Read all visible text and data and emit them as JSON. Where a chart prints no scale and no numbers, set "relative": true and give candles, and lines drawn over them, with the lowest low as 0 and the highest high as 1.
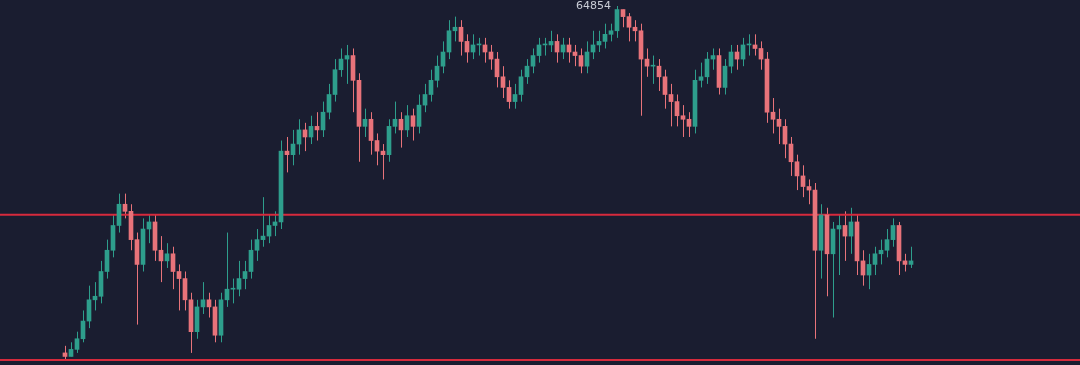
{
  "chart_data": {
    "type": "candlestick",
    "relative": true,
    "categories": [
      null,
      null,
      null,
      null,
      null,
      null,
      null,
      null,
      null,
      null,
      null,
      null,
      null,
      null,
      null,
      null,
      null,
      null,
      null,
      null,
      null,
      null,
      null,
      null,
      null,
      null,
      null,
      null,
      null,
      null,
      null,
      null,
      null,
      null,
      null,
      null,
      null,
      null,
      null,
      null,
      null,
      null,
      null,
      null,
      null,
      null,
      null,
      null,
      null,
      null,
      null,
      null,
      null,
      null,
      null,
      null,
      null,
      null,
      null,
      null,
      null,
      null,
      null,
      null,
      null,
      null,
      null,
      null,
      null,
      null,
      null,
      null,
      null,
      null,
      null,
      null,
      null,
      null,
      null,
      null,
      null,
      null,
      null,
      null,
      null,
      null,
      null,
      null,
      null,
      null,
      null,
      null,
      null,
      null,
      null,
      null,
      null,
      null,
      null,
      null,
      null,
      null,
      null,
      null,
      null,
      null,
      null,
      null,
      null,
      null,
      null,
      null,
      null,
      null,
      null,
      null,
      null,
      null,
      null,
      null,
      null,
      null,
      null,
      null,
      null,
      null,
      null,
      null,
      null,
      null,
      null,
      null,
      null,
      null,
      null,
      null,
      null,
      null,
      null,
      null,
      null,
      null
    ],
    "ohlc": [
      [
        0.02,
        0.04,
        0,
        0.01
      ],
      [
        0.01,
        0.05,
        0.01,
        0.03
      ],
      [
        0.03,
        0.08,
        0.02,
        0.06
      ],
      [
        0.06,
        0.14,
        0.05,
        0.11
      ],
      [
        0.11,
        0.21,
        0.09,
        0.17
      ],
      [
        0.17,
        0.22,
        0.14,
        0.18
      ],
      [
        0.18,
        0.28,
        0.16,
        0.25
      ],
      [
        0.25,
        0.34,
        0.23,
        0.31
      ],
      [
        0.31,
        0.41,
        0.29,
        0.38
      ],
      [
        0.38,
        0.47,
        0.36,
        0.44
      ],
      [
        0.44,
        0.47,
        0.4,
        0.42
      ],
      [
        0.42,
        0.44,
        0.31,
        0.34
      ],
      [
        0.34,
        0.36,
        0.1,
        0.27
      ],
      [
        0.27,
        0.4,
        0.25,
        0.37
      ],
      [
        0.37,
        0.41,
        0.33,
        0.39
      ],
      [
        0.39,
        0.41,
        0.28,
        0.31
      ],
      [
        0.31,
        0.35,
        0.22,
        0.28
      ],
      [
        0.28,
        0.33,
        0.26,
        0.3
      ],
      [
        0.3,
        0.32,
        0.2,
        0.25
      ],
      [
        0.25,
        0.27,
        0.14,
        0.23
      ],
      [
        0.23,
        0.25,
        0.14,
        0.17
      ],
      [
        0.17,
        0.19,
        0.02,
        0.08
      ],
      [
        0.08,
        0.17,
        0.06,
        0.15
      ],
      [
        0.15,
        0.22,
        0.13,
        0.17
      ],
      [
        0.17,
        0.19,
        0.12,
        0.15
      ],
      [
        0.15,
        0.17,
        0.05,
        0.07
      ],
      [
        0.07,
        0.19,
        0.05,
        0.17
      ],
      [
        0.17,
        0.36,
        0.15,
        0.2
      ],
      [
        0.2,
        0.23,
        0.16,
        0.2
      ],
      [
        0.2,
        0.28,
        0.18,
        0.23
      ],
      [
        0.23,
        0.28,
        0.2,
        0.25
      ],
      [
        0.25,
        0.34,
        0.23,
        0.31
      ],
      [
        0.31,
        0.37,
        0.28,
        0.34
      ],
      [
        0.34,
        0.46,
        0.32,
        0.35
      ],
      [
        0.35,
        0.41,
        0.33,
        0.38
      ],
      [
        0.38,
        0.42,
        0.35,
        0.39
      ],
      [
        0.39,
        0.62,
        0.37,
        0.59
      ],
      [
        0.59,
        0.63,
        0.53,
        0.58
      ],
      [
        0.58,
        0.65,
        0.55,
        0.61
      ],
      [
        0.61,
        0.68,
        0.58,
        0.65
      ],
      [
        0.65,
        0.67,
        0.59,
        0.63
      ],
      [
        0.63,
        0.69,
        0.61,
        0.66
      ],
      [
        0.66,
        0.7,
        0.62,
        0.65
      ],
      [
        0.65,
        0.73,
        0.63,
        0.7
      ],
      [
        0.7,
        0.78,
        0.68,
        0.75
      ],
      [
        0.75,
        0.85,
        0.73,
        0.82
      ],
      [
        0.82,
        0.88,
        0.8,
        0.85
      ],
      [
        0.85,
        0.89,
        0.78,
        0.86
      ],
      [
        0.86,
        0.88,
        0.7,
        0.79
      ],
      [
        0.79,
        0.81,
        0.56,
        0.66
      ],
      [
        0.66,
        0.71,
        0.63,
        0.68
      ],
      [
        0.68,
        0.7,
        0.58,
        0.62
      ],
      [
        0.62,
        0.64,
        0.55,
        0.59
      ],
      [
        0.59,
        0.61,
        0.51,
        0.58
      ],
      [
        0.58,
        0.68,
        0.56,
        0.66
      ],
      [
        0.66,
        0.73,
        0.64,
        0.68
      ],
      [
        0.68,
        0.7,
        0.6,
        0.65
      ],
      [
        0.65,
        0.72,
        0.63,
        0.69
      ],
      [
        0.69,
        0.71,
        0.62,
        0.66
      ],
      [
        0.66,
        0.75,
        0.64,
        0.72
      ],
      [
        0.72,
        0.78,
        0.7,
        0.75
      ],
      [
        0.75,
        0.82,
        0.73,
        0.79
      ],
      [
        0.79,
        0.86,
        0.77,
        0.83
      ],
      [
        0.83,
        0.9,
        0.81,
        0.87
      ],
      [
        0.87,
        0.96,
        0.85,
        0.93
      ],
      [
        0.93,
        0.97,
        0.9,
        0.94
      ],
      [
        0.94,
        0.96,
        0.86,
        0.9
      ],
      [
        0.9,
        0.92,
        0.84,
        0.87
      ],
      [
        0.87,
        0.92,
        0.85,
        0.89
      ],
      [
        0.89,
        0.91,
        0.86,
        0.89
      ],
      [
        0.89,
        0.91,
        0.84,
        0.87
      ],
      [
        0.87,
        0.89,
        0.82,
        0.85
      ],
      [
        0.85,
        0.87,
        0.77,
        0.8
      ],
      [
        0.8,
        0.83,
        0.74,
        0.77
      ],
      [
        0.77,
        0.79,
        0.71,
        0.73
      ],
      [
        0.73,
        0.78,
        0.71,
        0.75
      ],
      [
        0.75,
        0.82,
        0.73,
        0.8
      ],
      [
        0.8,
        0.85,
        0.78,
        0.83
      ],
      [
        0.83,
        0.88,
        0.81,
        0.86
      ],
      [
        0.86,
        0.91,
        0.84,
        0.89
      ],
      [
        0.89,
        0.91,
        0.86,
        0.89
      ],
      [
        0.89,
        0.93,
        0.87,
        0.9
      ],
      [
        0.9,
        0.92,
        0.84,
        0.87
      ],
      [
        0.87,
        0.91,
        0.85,
        0.89
      ],
      [
        0.89,
        0.91,
        0.84,
        0.87
      ],
      [
        0.87,
        0.89,
        0.83,
        0.86
      ],
      [
        0.86,
        0.88,
        0.81,
        0.83
      ],
      [
        0.83,
        0.9,
        0.81,
        0.87
      ],
      [
        0.87,
        0.93,
        0.85,
        0.89
      ],
      [
        0.89,
        0.93,
        0.87,
        0.9
      ],
      [
        0.9,
        0.95,
        0.88,
        0.92
      ],
      [
        0.92,
        0.95,
        0.9,
        0.93
      ],
      [
        0.93,
        1,
        0.91,
        0.99
      ],
      [
        0.99,
        0.99,
        0.94,
        0.97
      ],
      [
        0.97,
        0.98,
        0.9,
        0.94
      ],
      [
        0.94,
        0.96,
        0.9,
        0.93
      ],
      [
        0.93,
        0.95,
        0.69,
        0.85
      ],
      [
        0.85,
        0.88,
        0.8,
        0.83
      ],
      [
        0.83,
        0.86,
        0.78,
        0.83
      ],
      [
        0.83,
        0.85,
        0.76,
        0.8
      ],
      [
        0.8,
        0.82,
        0.71,
        0.75
      ],
      [
        0.75,
        0.78,
        0.66,
        0.73
      ],
      [
        0.73,
        0.75,
        0.66,
        0.69
      ],
      [
        0.69,
        0.72,
        0.63,
        0.68
      ],
      [
        0.68,
        0.7,
        0.63,
        0.66
      ],
      [
        0.66,
        0.82,
        0.64,
        0.79
      ],
      [
        0.79,
        0.84,
        0.77,
        0.8
      ],
      [
        0.8,
        0.87,
        0.78,
        0.85
      ],
      [
        0.85,
        0.88,
        0.82,
        0.86
      ],
      [
        0.86,
        0.88,
        0.75,
        0.77
      ],
      [
        0.77,
        0.85,
        0.75,
        0.83
      ],
      [
        0.83,
        0.89,
        0.81,
        0.87
      ],
      [
        0.87,
        0.89,
        0.82,
        0.85
      ],
      [
        0.85,
        0.91,
        0.83,
        0.89
      ],
      [
        0.89,
        0.92,
        0.86,
        0.89
      ],
      [
        0.89,
        0.92,
        0.86,
        0.88
      ],
      [
        0.88,
        0.9,
        0.82,
        0.85
      ],
      [
        0.85,
        0.87,
        0.67,
        0.7
      ],
      [
        0.7,
        0.74,
        0.64,
        0.68
      ],
      [
        0.68,
        0.71,
        0.61,
        0.66
      ],
      [
        0.66,
        0.68,
        0.57,
        0.61
      ],
      [
        0.61,
        0.63,
        0.52,
        0.56
      ],
      [
        0.56,
        0.58,
        0.48,
        0.52
      ],
      [
        0.52,
        0.55,
        0.46,
        0.49
      ],
      [
        0.49,
        0.51,
        0.44,
        0.48
      ],
      [
        0.48,
        0.5,
        0.06,
        0.31
      ],
      [
        0.31,
        0.44,
        0.23,
        0.41
      ],
      [
        0.41,
        0.43,
        0.18,
        0.3
      ],
      [
        0.3,
        0.39,
        0.12,
        0.37
      ],
      [
        0.37,
        0.41,
        0.24,
        0.38
      ],
      [
        0.38,
        0.42,
        0.28,
        0.35
      ],
      [
        0.35,
        0.43,
        0.3,
        0.39
      ],
      [
        0.39,
        0.41,
        0.24,
        0.28
      ],
      [
        0.28,
        0.31,
        0.21,
        0.24
      ],
      [
        0.24,
        0.3,
        0.2,
        0.27
      ],
      [
        0.27,
        0.32,
        0.24,
        0.3
      ],
      [
        0.3,
        0.34,
        0.27,
        0.31
      ],
      [
        0.31,
        0.37,
        0.29,
        0.34
      ],
      [
        0.34,
        0.4,
        0.32,
        0.38
      ],
      [
        0.38,
        0.39,
        0.24,
        0.28
      ],
      [
        0.28,
        0.3,
        0.25,
        0.27
      ],
      [
        0.27,
        0.32,
        0.26,
        0.28
      ]
    ],
    "colors": [
      "#e8737a",
      "#2e9e8c",
      "#2e9e8c",
      "#2e9e8c",
      "#2e9e8c",
      "#2e9e8c",
      "#2e9e8c",
      "#2e9e8c",
      "#2e9e8c",
      "#2e9e8c",
      "#e8737a",
      "#e8737a",
      "#e8737a",
      "#2e9e8c",
      "#2e9e8c",
      "#e8737a",
      "#e8737a",
      "#2e9e8c",
      "#e8737a",
      "#e8737a",
      "#e8737a",
      "#e8737a",
      "#2e9e8c",
      "#2e9e8c",
      "#e8737a",
      "#e8737a",
      "#2e9e8c",
      "#2e9e8c",
      "#2e9e8c",
      "#2e9e8c",
      "#2e9e8c",
      "#2e9e8c",
      "#2e9e8c",
      "#2e9e8c",
      "#2e9e8c",
      "#2e9e8c",
      "#2e9e8c",
      "#e8737a",
      "#2e9e8c",
      "#2e9e8c",
      "#e8737a",
      "#2e9e8c",
      "#e8737a",
      "#2e9e8c",
      "#2e9e8c",
      "#2e9e8c",
      "#2e9e8c",
      "#2e9e8c",
      "#e8737a",
      "#e8737a",
      "#2e9e8c",
      "#e8737a",
      "#e8737a",
      "#e8737a",
      "#2e9e8c",
      "#2e9e8c",
      "#e8737a",
      "#2e9e8c",
      "#e8737a",
      "#2e9e8c",
      "#2e9e8c",
      "#2e9e8c",
      "#2e9e8c",
      "#2e9e8c",
      "#2e9e8c",
      "#2e9e8c",
      "#e8737a",
      "#e8737a",
      "#2e9e8c",
      "#2e9e8c",
      "#e8737a",
      "#e8737a",
      "#e8737a",
      "#e8737a",
      "#e8737a",
      "#2e9e8c",
      "#2e9e8c",
      "#2e9e8c",
      "#2e9e8c",
      "#2e9e8c",
      "#2e9e8c",
      "#2e9e8c",
      "#e8737a",
      "#2e9e8c",
      "#e8737a",
      "#e8737a",
      "#e8737a",
      "#2e9e8c",
      "#2e9e8c",
      "#2e9e8c",
      "#2e9e8c",
      "#2e9e8c",
      "#2e9e8c",
      "#e8737a",
      "#e8737a",
      "#e8737a",
      "#e8737a",
      "#e8737a",
      "#2e9e8c",
      "#e8737a",
      "#e8737a",
      "#e8737a",
      "#e8737a",
      "#e8737a",
      "#e8737a",
      "#2e9e8c",
      "#2e9e8c",
      "#2e9e8c",
      "#2e9e8c",
      "#e8737a",
      "#2e9e8c",
      "#2e9e8c",
      "#e8737a",
      "#2e9e8c",
      "#2e9e8c",
      "#e8737a",
      "#e8737a",
      "#e8737a",
      "#e8737a",
      "#e8737a",
      "#e8737a",
      "#e8737a",
      "#e8737a",
      "#e8737a",
      "#e8737a",
      "#e8737a",
      "#2e9e8c",
      "#e8737a",
      "#2e9e8c",
      "#2e9e8c",
      "#e8737a",
      "#2e9e8c",
      "#e8737a",
      "#e8737a",
      "#2e9e8c",
      "#2e9e8c",
      "#2e9e8c",
      "#2e9e8c",
      "#2e9e8c",
      "#e8737a",
      "#e8737a",
      "#2e9e8c"
    ],
    "ref_lines": [
      {
        "axis": "y",
        "value": 0.41,
        "color": "#d62a3c"
      },
      {
        "axis": "y",
        "value": 0,
        "color": "#d62a3c"
      }
    ],
    "annotations": [
      "64854"
    ],
    "legend": false
  }
}
